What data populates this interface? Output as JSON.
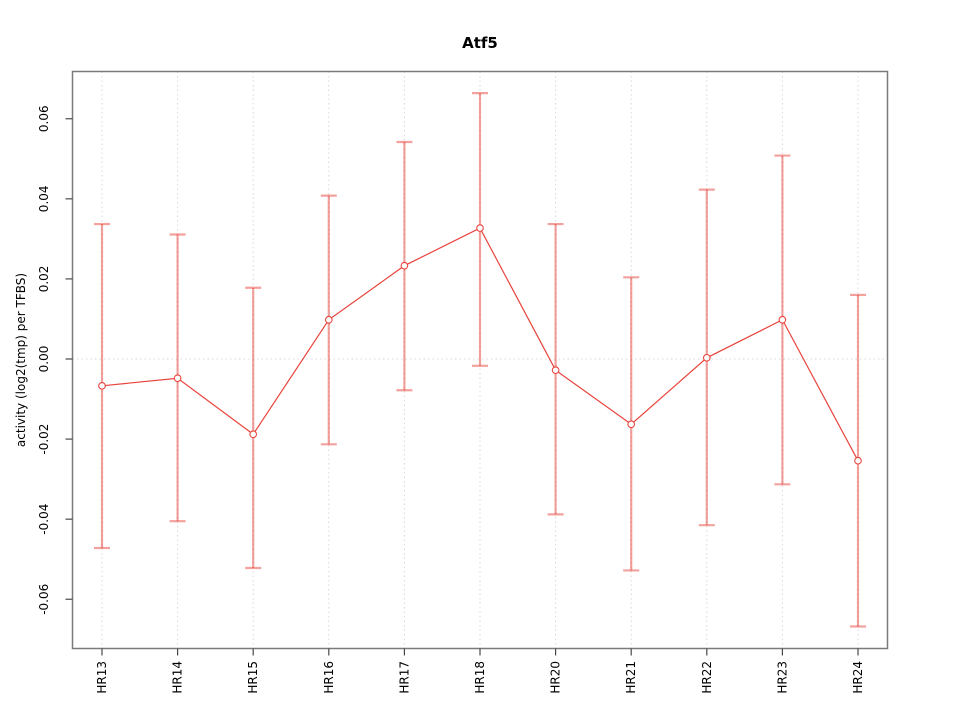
{
  "chart_data": {
    "type": "line",
    "title": "Atf5",
    "xlabel": "",
    "ylabel": "activity (log2(tmp) per TFBS)",
    "legend": "none",
    "marker": "open-circle",
    "grid": {
      "vertical_dotted_per_category": true,
      "horizontal_dotted_zero_line": true
    },
    "ylim": [
      -0.0723,
      0.0718
    ],
    "y_ticks": [
      {
        "value": -0.06,
        "label": "-0.06"
      },
      {
        "value": -0.04,
        "label": "-0.04"
      },
      {
        "value": -0.02,
        "label": "-0.02"
      },
      {
        "value": 0.0,
        "label": "0.00"
      },
      {
        "value": 0.02,
        "label": "0.02"
      },
      {
        "value": 0.04,
        "label": "0.04"
      },
      {
        "value": 0.06,
        "label": "0.06"
      }
    ],
    "categories": [
      "HR13",
      "HR14",
      "HR15",
      "HR16",
      "HR17",
      "HR18",
      "HR20",
      "HR21",
      "HR22",
      "HR23",
      "HR24"
    ],
    "series": [
      {
        "name": "activity",
        "values": [
          -0.0067,
          -0.0048,
          -0.0188,
          0.0098,
          0.0233,
          0.0327,
          -0.0028,
          -0.0163,
          0.0003,
          0.0098,
          -0.0254
        ],
        "error_upper": [
          0.0337,
          0.0311,
          0.0178,
          0.0408,
          0.0542,
          0.0664,
          0.0337,
          0.0204,
          0.0423,
          0.0508,
          0.016
        ],
        "error_lower": [
          -0.0472,
          -0.0405,
          -0.0522,
          -0.0213,
          -0.0078,
          -0.0017,
          -0.0388,
          -0.0528,
          -0.0415,
          -0.0313,
          -0.0668
        ]
      }
    ]
  },
  "style": {
    "line_color": "#e8443c",
    "errorbar_color": "#e8443c",
    "errorbar_opacity": 0.5,
    "grid_color": "#d8d8d8",
    "box_color": "#7a7a7a",
    "tick_color": "#4a4a4a",
    "text_color": "#000000",
    "background": "#ffffff"
  }
}
